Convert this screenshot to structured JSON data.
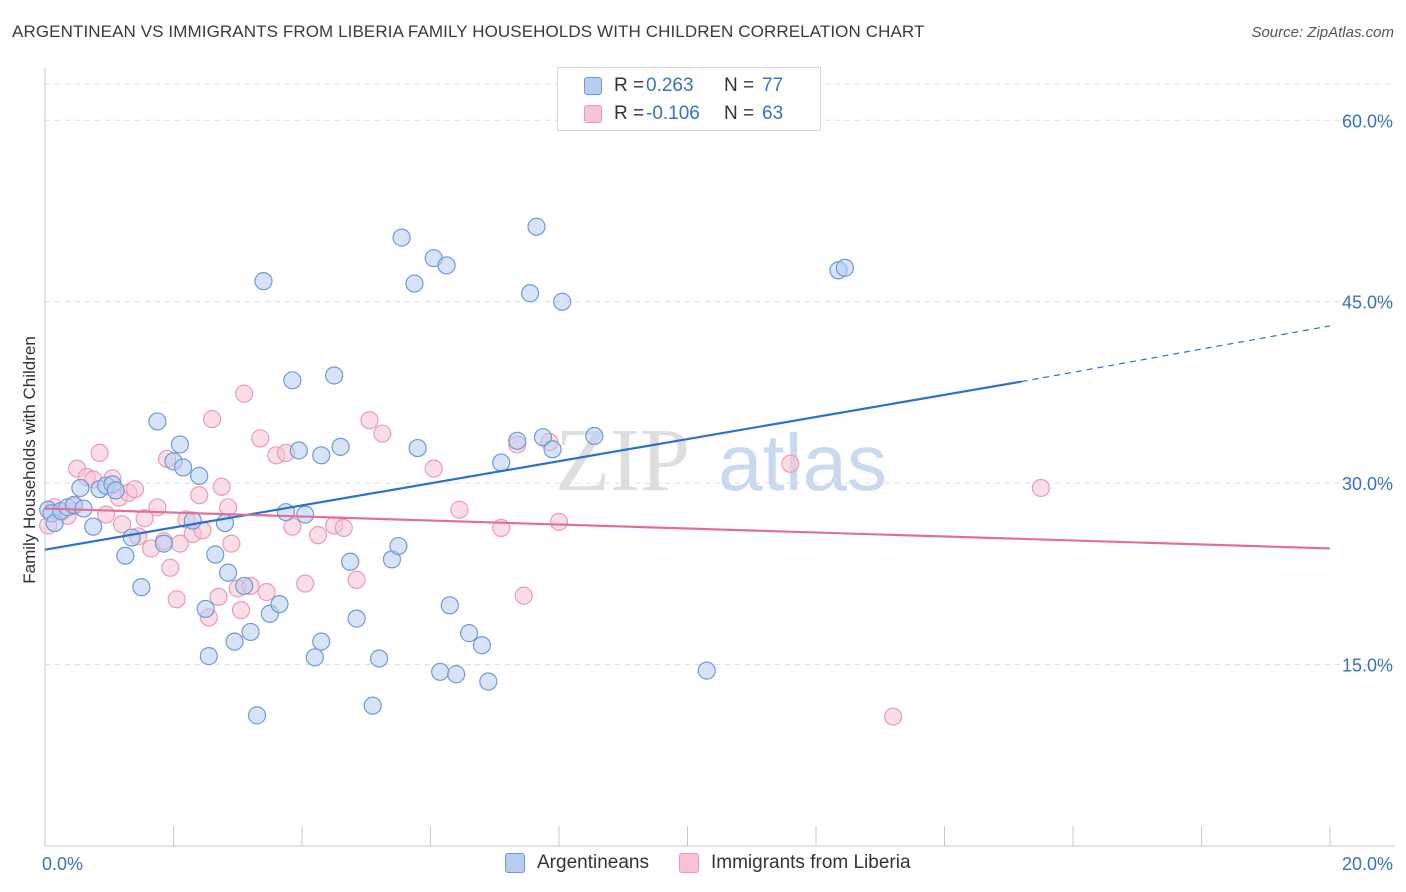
{
  "title": "ARGENTINEAN VS IMMIGRANTS FROM LIBERIA FAMILY HOUSEHOLDS WITH CHILDREN CORRELATION CHART",
  "source": "Source: ZipAtlas.com",
  "watermark": {
    "zip": "ZIP",
    "atlas": "atlas"
  },
  "legend": {
    "rows": [
      {
        "r_label": "R =",
        "r_value": "0.263",
        "n_label": "N =",
        "n_value": "77"
      },
      {
        "r_label": "R =",
        "r_value": "-0.106",
        "n_label": "N =",
        "n_value": "63"
      }
    ]
  },
  "bottom_legend": [
    "Argentineans",
    "Immigrants from Liberia"
  ],
  "colors": {
    "blue_fill": "#b7cdf0",
    "blue_stroke": "#6f9ad8",
    "blue_line": "#2e6fce",
    "pink_fill": "#f6c3d4",
    "pink_stroke": "#ee9ab6",
    "pink_line": "#e0709a",
    "tick_text": "#3a6fc4",
    "grid": "#dcdcdc"
  },
  "chart_data": {
    "type": "scatter",
    "xlabel": "",
    "ylabel": "Family Households with Children",
    "xlim": [
      0,
      20
    ],
    "ylim": [
      0,
      63
    ],
    "x_tick_labels": [
      {
        "value": 0,
        "label": "0.0%"
      },
      {
        "value": 20,
        "label": "20.0%"
      }
    ],
    "y_tick_labels": [
      {
        "value": 15,
        "label": "15.0%"
      },
      {
        "value": 30,
        "label": "30.0%"
      },
      {
        "value": 45,
        "label": "45.0%"
      },
      {
        "value": 60,
        "label": "60.0%"
      }
    ],
    "x_minor_ticks": [
      0,
      2,
      4,
      6,
      8,
      10,
      12,
      14,
      16,
      18,
      20
    ],
    "grid": "horizontal dashed",
    "series": [
      {
        "name": "Argentineans",
        "color": "blue",
        "trend": {
          "x0": 0,
          "y0": 24.5,
          "x1": 15.2,
          "y1": 38.4,
          "dashed_to_x": 20,
          "dashed_to_y": 43.0
        },
        "points": [
          [
            0.05,
            27.8
          ],
          [
            0.1,
            27.5
          ],
          [
            0.15,
            26.7
          ],
          [
            0.25,
            27.7
          ],
          [
            0.35,
            28.0
          ],
          [
            0.45,
            28.2
          ],
          [
            0.55,
            29.6
          ],
          [
            0.6,
            27.9
          ],
          [
            0.75,
            26.4
          ],
          [
            0.85,
            29.5
          ],
          [
            0.95,
            29.8
          ],
          [
            1.05,
            29.9
          ],
          [
            1.1,
            29.4
          ],
          [
            1.25,
            24.0
          ],
          [
            1.35,
            25.5
          ],
          [
            1.5,
            21.4
          ],
          [
            1.75,
            35.1
          ],
          [
            1.85,
            25.0
          ],
          [
            2.0,
            31.8
          ],
          [
            2.1,
            33.2
          ],
          [
            2.15,
            31.3
          ],
          [
            2.3,
            26.9
          ],
          [
            2.4,
            30.6
          ],
          [
            2.5,
            19.6
          ],
          [
            2.55,
            15.7
          ],
          [
            2.65,
            24.1
          ],
          [
            2.8,
            26.7
          ],
          [
            2.85,
            22.6
          ],
          [
            2.95,
            16.9
          ],
          [
            3.1,
            21.5
          ],
          [
            3.2,
            17.7
          ],
          [
            3.3,
            10.8
          ],
          [
            3.4,
            46.7
          ],
          [
            3.5,
            19.2
          ],
          [
            3.65,
            20.0
          ],
          [
            3.75,
            27.6
          ],
          [
            3.85,
            38.5
          ],
          [
            3.95,
            32.7
          ],
          [
            4.05,
            27.4
          ],
          [
            4.2,
            15.6
          ],
          [
            4.3,
            16.9
          ],
          [
            4.3,
            32.3
          ],
          [
            4.5,
            38.9
          ],
          [
            4.6,
            33.0
          ],
          [
            4.75,
            23.5
          ],
          [
            4.85,
            18.8
          ],
          [
            5.2,
            15.5
          ],
          [
            5.1,
            11.6
          ],
          [
            5.4,
            23.7
          ],
          [
            5.5,
            24.8
          ],
          [
            5.55,
            50.3
          ],
          [
            5.75,
            46.5
          ],
          [
            5.8,
            32.9
          ],
          [
            6.05,
            48.6
          ],
          [
            6.15,
            14.4
          ],
          [
            6.25,
            48.0
          ],
          [
            6.3,
            19.9
          ],
          [
            6.4,
            14.2
          ],
          [
            6.6,
            17.6
          ],
          [
            6.8,
            16.6
          ],
          [
            6.9,
            13.6
          ],
          [
            7.1,
            31.7
          ],
          [
            7.35,
            33.5
          ],
          [
            7.55,
            45.7
          ],
          [
            7.65,
            51.2
          ],
          [
            7.75,
            33.8
          ],
          [
            7.9,
            32.8
          ],
          [
            8.05,
            45.0
          ],
          [
            8.55,
            33.9
          ],
          [
            10.3,
            14.5
          ],
          [
            12.35,
            47.6
          ],
          [
            12.45,
            47.8
          ]
        ]
      },
      {
        "name": "Immigrants from Liberia",
        "color": "pink",
        "trend": {
          "x0": 0,
          "y0": 27.9,
          "x1": 20,
          "y1": 24.6
        },
        "points": [
          [
            0.05,
            26.5
          ],
          [
            0.15,
            28.0
          ],
          [
            0.25,
            27.6
          ],
          [
            0.35,
            27.3
          ],
          [
            0.45,
            28.1
          ],
          [
            0.5,
            31.2
          ],
          [
            0.65,
            30.5
          ],
          [
            0.75,
            30.3
          ],
          [
            0.85,
            32.5
          ],
          [
            0.95,
            27.4
          ],
          [
            1.05,
            30.4
          ],
          [
            1.15,
            28.8
          ],
          [
            1.2,
            26.6
          ],
          [
            1.3,
            29.2
          ],
          [
            1.4,
            29.5
          ],
          [
            1.45,
            25.6
          ],
          [
            1.55,
            27.1
          ],
          [
            1.65,
            24.6
          ],
          [
            1.75,
            28.0
          ],
          [
            1.85,
            25.2
          ],
          [
            1.9,
            32.0
          ],
          [
            1.95,
            23.0
          ],
          [
            2.05,
            20.4
          ],
          [
            2.1,
            25.0
          ],
          [
            2.2,
            27.0
          ],
          [
            2.3,
            25.8
          ],
          [
            2.4,
            29.0
          ],
          [
            2.45,
            26.1
          ],
          [
            2.55,
            18.9
          ],
          [
            2.6,
            35.3
          ],
          [
            2.7,
            20.6
          ],
          [
            2.75,
            29.7
          ],
          [
            2.85,
            28.0
          ],
          [
            2.9,
            25.0
          ],
          [
            3.0,
            21.3
          ],
          [
            3.05,
            19.5
          ],
          [
            3.1,
            37.4
          ],
          [
            3.2,
            21.5
          ],
          [
            3.35,
            33.7
          ],
          [
            3.45,
            21.0
          ],
          [
            3.6,
            32.3
          ],
          [
            3.75,
            32.5
          ],
          [
            3.85,
            26.4
          ],
          [
            4.05,
            21.7
          ],
          [
            4.25,
            25.7
          ],
          [
            4.5,
            26.5
          ],
          [
            4.65,
            26.3
          ],
          [
            4.85,
            22.0
          ],
          [
            5.05,
            35.2
          ],
          [
            5.25,
            34.1
          ],
          [
            6.05,
            31.2
          ],
          [
            6.45,
            27.8
          ],
          [
            7.1,
            26.3
          ],
          [
            7.35,
            33.2
          ],
          [
            7.45,
            20.7
          ],
          [
            7.85,
            33.4
          ],
          [
            8.0,
            26.8
          ],
          [
            11.6,
            31.6
          ],
          [
            13.2,
            10.7
          ],
          [
            15.5,
            29.6
          ]
        ]
      }
    ]
  }
}
